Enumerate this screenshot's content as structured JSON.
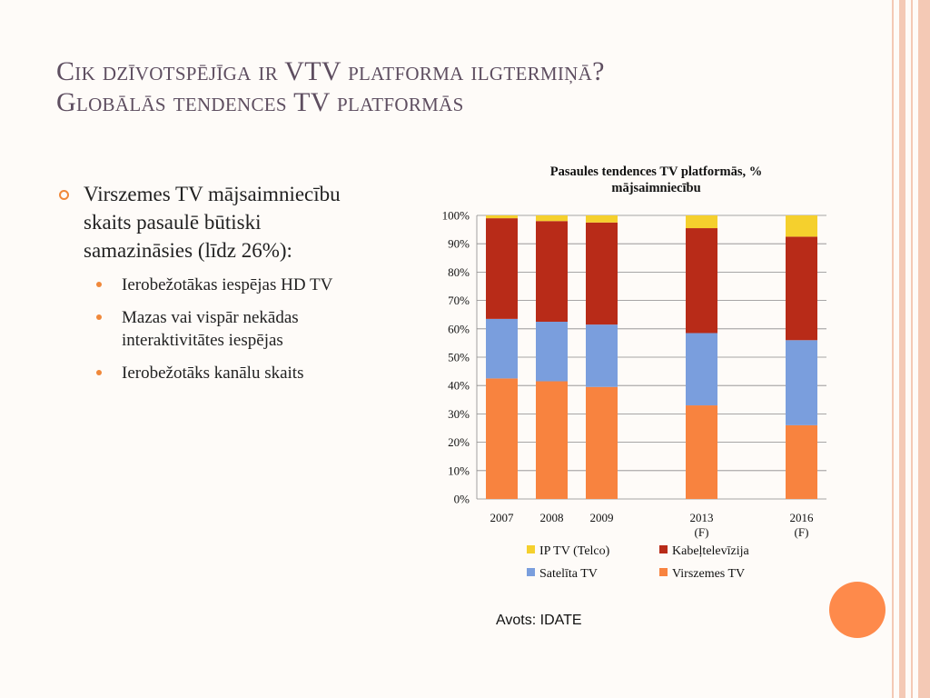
{
  "slide": {
    "title_line1": "Cik dzīvotspējīga ir VTV platforma ilgtermiņā?",
    "title_line2": "Globālās tendences TV platformās",
    "bullet_main": "Virszemes TV mājsaimniecību skaits pasaulē būtiski samazināsies (līdz 26%):",
    "sub_bullets": [
      "Ierobežotākas iespējas HD TV",
      "Mazas vai vispār nekādas interaktivitātes iespējas",
      "Ierobežotāks kanālu skaits"
    ],
    "source": "Avots: IDATE"
  },
  "colors": {
    "background": "#fefbf8",
    "title": "#5e4e60",
    "accent": "#f0883a",
    "circle": "#fe8a4b",
    "stripes": "#f4c9b5"
  },
  "chart_data": {
    "type": "bar",
    "stacked": true,
    "title": "Pasaules tendences TV platformās, % mājsaimniecību",
    "title_lines": [
      "Pasaules tendences TV platformās, %",
      "mājsaimniecību"
    ],
    "categories": [
      {
        "label": "2007",
        "sub": ""
      },
      {
        "label": "2008",
        "sub": ""
      },
      {
        "label": "2009",
        "sub": ""
      },
      {
        "label": "2013",
        "sub": "(F)"
      },
      {
        "label": "2016",
        "sub": "(F)"
      }
    ],
    "slot_positions": [
      0,
      1,
      2,
      4,
      6
    ],
    "series": [
      {
        "name": "Virszemes TV",
        "color": "#f8833f",
        "values": [
          42.5,
          41.5,
          39.5,
          33,
          26
        ]
      },
      {
        "name": "Satelīta TV",
        "color": "#7a9edd",
        "values": [
          21,
          21,
          22,
          25.5,
          30
        ]
      },
      {
        "name": "Kabeļtelevīzija",
        "color": "#b82b18",
        "values": [
          35.5,
          35.5,
          36,
          37,
          36.5
        ]
      },
      {
        "name": "IP TV (Telco)",
        "color": "#f5d02d",
        "values": [
          1,
          2,
          2.5,
          4.5,
          7.5
        ]
      }
    ],
    "legend_order": [
      "IP TV (Telco)",
      "Kabeļtelevīzija",
      "Satelīta TV",
      "Virszemes TV"
    ],
    "ylim": [
      0,
      100
    ],
    "yticks": [
      "0%",
      "10%",
      "20%",
      "30%",
      "40%",
      "50%",
      "60%",
      "70%",
      "80%",
      "90%",
      "100%"
    ],
    "grid": true,
    "legend_position": "bottom"
  }
}
